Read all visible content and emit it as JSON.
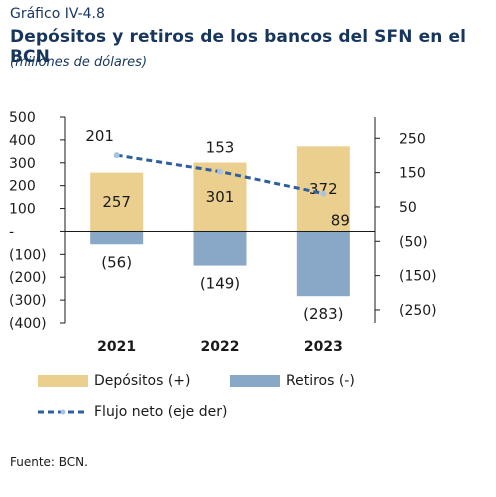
{
  "header": {
    "label": "Gráfico IV-4.8",
    "title": "Depósitos y retiros de los bancos del SFN en el BCN",
    "subtitle": "(millones de dólares)"
  },
  "source": "Fuente: BCN.",
  "colors": {
    "deposits": "#ebcf8e",
    "withdrawals": "#89a8c7",
    "net_flow": "#2e5f9e",
    "net_flow_marker": "#a9c3e0",
    "axis": "#1a1a1a"
  },
  "chart_data": {
    "type": "bar",
    "categories": [
      "2021",
      "2022",
      "2023"
    ],
    "series": [
      {
        "name": "Depósitos (+)",
        "type": "bar",
        "axis": "left",
        "values": [
          257,
          301,
          372
        ],
        "labels": [
          "257",
          "301",
          "372"
        ]
      },
      {
        "name": "Retiros (-)",
        "type": "bar",
        "axis": "left",
        "values": [
          -56,
          -149,
          -283
        ],
        "labels": [
          "(56)",
          "(149)",
          "(283)"
        ]
      },
      {
        "name": "Flujo neto (eje der)",
        "type": "line",
        "style": "dashed",
        "axis": "right",
        "values": [
          201,
          153,
          89
        ],
        "labels": [
          "201",
          "153",
          "89"
        ]
      }
    ],
    "y_left": {
      "range": [
        -400,
        500
      ],
      "ticks": [
        500,
        400,
        300,
        200,
        100,
        0,
        -100,
        -200,
        -300,
        -400
      ],
      "tick_labels": [
        "500",
        "400",
        "300",
        "200",
        "100",
        "-",
        "(100)",
        "(200)",
        "(300)",
        "(400)"
      ]
    },
    "y_right": {
      "range": [
        -288,
        312
      ],
      "ticks": [
        250,
        150,
        50,
        -50,
        -150,
        -250
      ],
      "tick_labels": [
        "250",
        "150",
        "50",
        "(50)",
        "(150)",
        "(250)"
      ]
    },
    "grid": false,
    "legend_position": "bottom"
  }
}
